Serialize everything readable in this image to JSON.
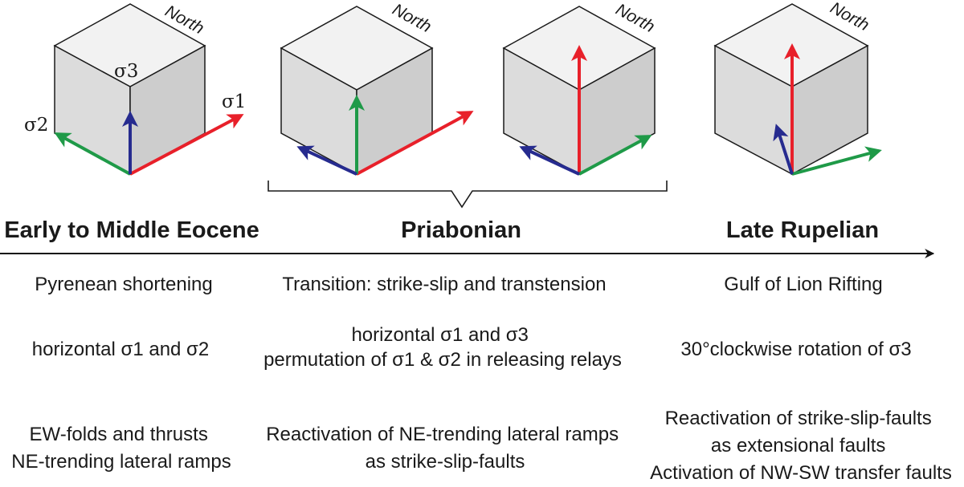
{
  "north_label": "North",
  "sigma_labels": {
    "s1": "σ1",
    "s2": "σ2",
    "s3": "σ3"
  },
  "colors": {
    "sigma1": "#e8202a",
    "sigma2": "#1f9a48",
    "sigma3": "#262b8f",
    "axis": "#111111"
  },
  "periods": [
    {
      "label": "Early to Middle Eocene"
    },
    {
      "label": "Priabonian"
    },
    {
      "label": "Late Rupelian"
    }
  ],
  "rows": [
    {
      "col1": [
        "Pyrenean shortening"
      ],
      "col2": [
        "Transition: strike-slip and transtension"
      ],
      "col3": [
        "Gulf of Lion Rifting"
      ]
    },
    {
      "col1": [
        "horizontal σ1 and σ2"
      ],
      "col2": [
        "horizontal σ1 and σ3",
        "permutation of σ1 & σ2 in releasing relays"
      ],
      "col3": [
        "30°clockwise rotation of σ3"
      ]
    },
    {
      "col1": [
        "EW-folds and thrusts",
        "NE-trending lateral ramps"
      ],
      "col2": [
        "Reactivation of NE-trending lateral ramps",
        "as strike-slip-faults"
      ],
      "col3": [
        "Reactivation of strike-slip-faults",
        "as extensional faults",
        "Activation of NW-SW transfer faults"
      ]
    }
  ]
}
